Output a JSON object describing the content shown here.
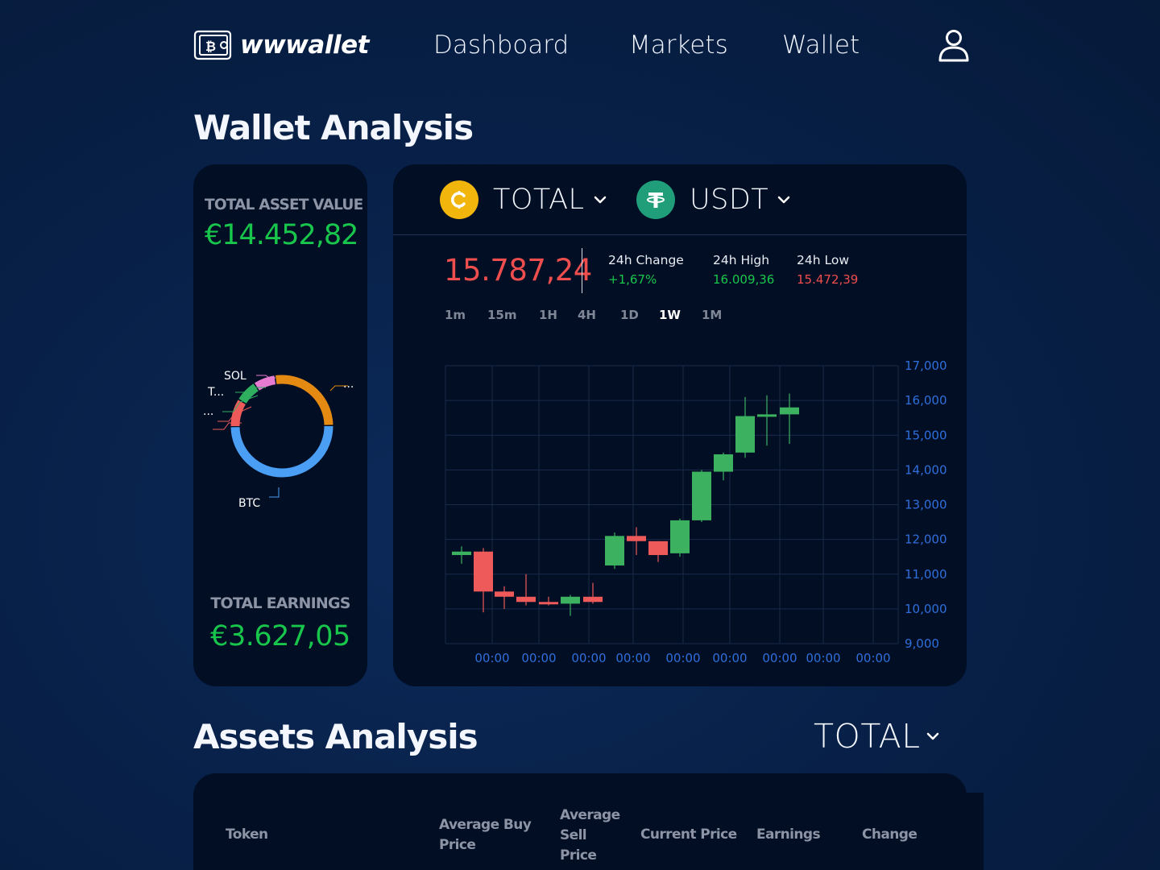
{
  "brand": {
    "name": "wwwallet",
    "icon": "wallet-bitcoin-icon"
  },
  "nav": {
    "dashboard": "Dashboard",
    "markets": "Markets",
    "wallet": "Wallet",
    "user_icon": "user-icon"
  },
  "wallet_analysis": {
    "title": "Wallet Analysis",
    "total_asset_value_label": "TOTAL ASSET VALUE",
    "total_asset_value": "€14.452,82",
    "total_earnings_label": "TOTAL EARNINGS",
    "total_earnings": "€3.627,05",
    "allocation": {
      "labels": {
        "sol": "SOL",
        "t": "T...",
        "dots_left": "...",
        "dots_right": "...",
        "btc": "BTC"
      },
      "segments": [
        {
          "name": "BTC",
          "share": 0.5,
          "color": "#4a9ff5"
        },
        {
          "name": "red",
          "share": 0.09,
          "color": "#ee5a5a"
        },
        {
          "name": "green",
          "share": 0.07,
          "color": "#2fae60"
        },
        {
          "name": "SOL",
          "share": 0.07,
          "color": "#e77bd0"
        },
        {
          "name": "orange",
          "share": 0.27,
          "color": "#e48a12"
        }
      ]
    }
  },
  "market": {
    "base": {
      "label": "TOTAL",
      "icon": "coin-c-icon"
    },
    "quote": {
      "label": "USDT",
      "icon": "tether-icon"
    },
    "price": "15.787,24",
    "change_label": "24h Change",
    "change": "+1,67%",
    "high_label": "24h High",
    "high": "16.009,36",
    "low_label": "24h Low",
    "low": "15.472,39",
    "timeframes": [
      "1m",
      "15m",
      "1H",
      "4H",
      "1D",
      "1W",
      "1M"
    ],
    "active_timeframe": "1W"
  },
  "chart_data": {
    "type": "candlestick",
    "y_ticks": [
      "17,000",
      "16,000",
      "15,000",
      "14,000",
      "13,000",
      "12,000",
      "11,000",
      "10,000",
      "9,000"
    ],
    "ylim": [
      9000,
      17000
    ],
    "x_ticks": [
      "00:00",
      "00:00",
      "00:00",
      "00:00",
      "00:00",
      "00:00",
      "00:00",
      "00:00",
      "00:00"
    ],
    "colors": {
      "up": "#3cb160",
      "down": "#ee5a5a"
    },
    "candles": [
      {
        "o": 11550,
        "h": 11800,
        "l": 11300,
        "c": 11650
      },
      {
        "o": 11650,
        "h": 11750,
        "l": 9900,
        "c": 10500
      },
      {
        "o": 10500,
        "h": 10650,
        "l": 10000,
        "c": 10350
      },
      {
        "o": 10350,
        "h": 11000,
        "l": 10100,
        "c": 10200
      },
      {
        "o": 10200,
        "h": 10350,
        "l": 10100,
        "c": 10150
      },
      {
        "o": 10150,
        "h": 10400,
        "l": 9800,
        "c": 10350
      },
      {
        "o": 10350,
        "h": 10750,
        "l": 10150,
        "c": 10200
      },
      {
        "o": 11250,
        "h": 12200,
        "l": 11150,
        "c": 12100
      },
      {
        "o": 12100,
        "h": 12350,
        "l": 11550,
        "c": 11950
      },
      {
        "o": 11950,
        "h": 11950,
        "l": 11350,
        "c": 11550
      },
      {
        "o": 11600,
        "h": 12600,
        "l": 11500,
        "c": 12550
      },
      {
        "o": 12550,
        "h": 14000,
        "l": 12500,
        "c": 13950
      },
      {
        "o": 13950,
        "h": 14500,
        "l": 13700,
        "c": 14450
      },
      {
        "o": 14500,
        "h": 16100,
        "l": 14350,
        "c": 15550
      },
      {
        "o": 15550,
        "h": 16150,
        "l": 14700,
        "c": 15600
      },
      {
        "o": 15600,
        "h": 16200,
        "l": 14750,
        "c": 15800
      }
    ]
  },
  "assets": {
    "title": "Assets Analysis",
    "selector": "TOTAL",
    "columns": {
      "token": "Token",
      "avg_buy": "Average Buy Price",
      "avg_sell": "Average Sell Price",
      "current": "Current Price",
      "earnings": "Earnings",
      "change": "Change"
    }
  }
}
